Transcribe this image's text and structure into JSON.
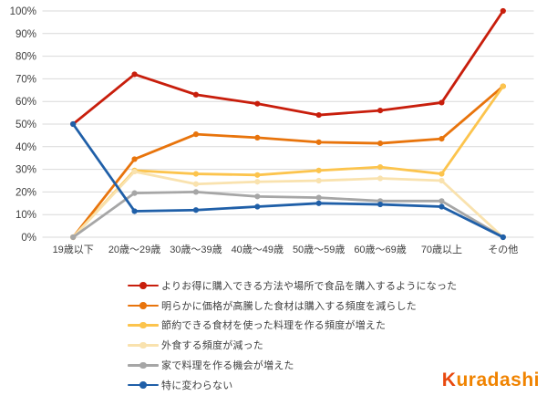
{
  "chart_data": {
    "type": "line",
    "title": "",
    "xlabel": "",
    "ylabel": "",
    "ylim": [
      0,
      100
    ],
    "ytick_step": 10,
    "ytick_labels": [
      "0%",
      "10%",
      "20%",
      "30%",
      "40%",
      "50%",
      "60%",
      "70%",
      "80%",
      "90%",
      "100%"
    ],
    "grid": "horizontal",
    "legend_position": "bottom-left",
    "categories": [
      "19歳以下",
      "20歳〜29歳",
      "30歳〜39歳",
      "40歳〜49歳",
      "50歳〜59歳",
      "60歳〜69歳",
      "70歳以上",
      "その他"
    ],
    "series": [
      {
        "name": "よりお得に購入できる方法や場所で食品を購入するようになった",
        "color": "#c81e0c",
        "values": [
          50,
          72,
          63,
          59,
          54,
          56,
          59.5,
          100
        ]
      },
      {
        "name": "明らかに価格が高騰した食材は購入する頻度を減らした",
        "color": "#e8740c",
        "values": [
          0,
          34.5,
          45.5,
          44,
          42,
          41.5,
          43.5,
          66.7
        ]
      },
      {
        "name": "節約できる食材を使った料理を作る頻度が増えた",
        "color": "#fcc44d",
        "values": [
          0,
          29.5,
          28,
          27.5,
          29.5,
          31,
          28,
          66.7
        ]
      },
      {
        "name": "外食する頻度が減った",
        "color": "#f9e2ae",
        "values": [
          0,
          29,
          23.5,
          24.5,
          25,
          26,
          25,
          0
        ]
      },
      {
        "name": "家で料理を作る機会が増えた",
        "color": "#a6a6a6",
        "values": [
          0,
          19.5,
          20,
          18,
          17.5,
          16,
          16,
          0
        ]
      },
      {
        "name": "特に変わらない",
        "color": "#1f5fa8",
        "values": [
          50,
          11.5,
          12,
          13.5,
          15,
          14.5,
          13.5,
          0
        ]
      }
    ],
    "colors": {
      "gridline": "#d9d9d9",
      "tick_label": "#3f3f3f"
    }
  },
  "logo": {
    "k": "K",
    "rest": "uradashi",
    "color_k": "#e8490f",
    "color_rest": "#f08300"
  }
}
